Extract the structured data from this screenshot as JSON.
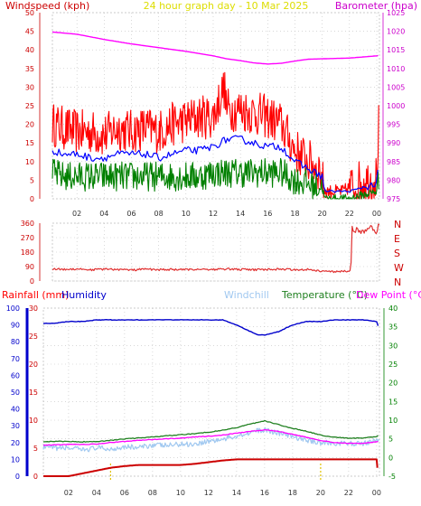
{
  "header": {
    "left_label": "Windspeed (kph)",
    "center_label": "24 hour graph day - 10 Mar 2025",
    "right_label": "Barometer (hpa)"
  },
  "lower_header": {
    "rain_label": "Rainfall (mm)",
    "humidity_label": "Humidity",
    "windchill_label": "Windchill",
    "temperature_label": "Temperature (°C)",
    "dewpoint_label": "Dew Point (°C)"
  },
  "colors": {
    "background": "#ffffff",
    "wind_gust": "#ff0000",
    "wind_avg": "#0000ff",
    "wind_low": "#008000",
    "barometer": "#ff00ff",
    "direction": "#e03030",
    "rain": "#cc0000",
    "humidity": "#0000cc",
    "windchill": "#a0c8f0",
    "temperature": "#208020",
    "dewpoint": "#ff00ff",
    "header_left": "#cc0000",
    "header_center": "#dddd00",
    "header_right": "#cc00cc",
    "axis_left": "#cc0000",
    "axis_right": "#cc00cc",
    "axis_temp": "#008000",
    "grid": "#c0c0c0"
  },
  "chart_data": [
    {
      "id": "wind_baro",
      "type": "line",
      "x_ticks": [
        "02",
        "04",
        "06",
        "08",
        "10",
        "12",
        "14",
        "16",
        "18",
        "20",
        "22",
        "00"
      ],
      "x_tick_hours": [
        2,
        4,
        6,
        8,
        10,
        12,
        14,
        16,
        18,
        20,
        22,
        24
      ],
      "x_range": [
        0.2,
        24.2
      ],
      "ylim": [
        0,
        50
      ],
      "y_ticks": [
        "0",
        "5",
        "10",
        "15",
        "20",
        "25",
        "30",
        "35",
        "40",
        "45",
        "50"
      ],
      "y2lim": [
        975,
        1025
      ],
      "y2_ticks": [
        "975",
        "980",
        "985",
        "990",
        "995",
        "1000",
        "1005",
        "1010",
        "1015",
        "1020",
        "1025"
      ],
      "series": [
        {
          "key": "gust",
          "hours": [
            0.2,
            1,
            2,
            3,
            4,
            5,
            6,
            7,
            8,
            9,
            10,
            11,
            12,
            12.8,
            13,
            14,
            15,
            16,
            17,
            18,
            19,
            19.8,
            20.2,
            21.5,
            22.5,
            23,
            23.5,
            24,
            24.2
          ],
          "values": [
            20,
            19,
            18,
            18,
            17,
            19,
            18,
            19,
            18,
            20,
            21,
            22,
            22,
            30,
            24,
            24,
            23,
            22,
            20,
            13,
            10,
            8,
            2,
            2,
            4,
            5,
            5,
            6,
            24
          ]
        },
        {
          "key": "average",
          "hours": [
            0.2,
            1,
            2,
            3,
            4,
            5,
            6,
            7,
            8,
            9,
            10,
            11,
            12,
            13,
            14,
            15,
            16,
            17,
            18,
            19,
            20,
            20.2,
            22,
            23,
            24,
            24.2
          ],
          "values": [
            13,
            12,
            12,
            11,
            11,
            12,
            12,
            12,
            11,
            12,
            13,
            13,
            14,
            16,
            16,
            15,
            14,
            14,
            10,
            8,
            6,
            2,
            2,
            3,
            4,
            11
          ]
        },
        {
          "key": "low",
          "hours": [
            0.2,
            1,
            2,
            3,
            4,
            5,
            6,
            7,
            8,
            9,
            10,
            11,
            12,
            13,
            14,
            15,
            16,
            17,
            18,
            19,
            20,
            20.2,
            22,
            23,
            24,
            24.2
          ],
          "values": [
            7,
            6,
            6,
            6,
            6,
            6,
            6,
            6,
            6,
            6,
            6,
            6,
            7,
            7,
            7,
            7,
            7,
            7,
            5,
            4,
            3,
            0,
            0,
            1,
            2,
            6
          ]
        },
        {
          "key": "barometer",
          "hours": [
            0.2,
            2,
            4,
            6,
            8,
            10,
            12,
            13,
            14,
            15,
            16,
            17,
            18,
            19,
            20,
            21,
            22,
            23,
            24,
            24.2
          ],
          "values": [
            1019.8,
            1019.2,
            1017.8,
            1016.6,
            1015.6,
            1014.6,
            1013.4,
            1012.6,
            1012.1,
            1011.5,
            1011.2,
            1011.4,
            1012,
            1012.5,
            1012.6,
            1012.7,
            1012.8,
            1013.1,
            1013.4,
            1013.6
          ]
        }
      ]
    },
    {
      "id": "wind_direction",
      "type": "line",
      "x_range": [
        0.2,
        24.2
      ],
      "ylim": [
        0,
        360
      ],
      "y_ticks": [
        "0",
        "90",
        "180",
        "270",
        "360"
      ],
      "compass": [
        "N",
        "W",
        "S",
        "E",
        "N"
      ],
      "series": [
        {
          "key": "direction",
          "hours": [
            0.2,
            1,
            2,
            3,
            4,
            5,
            6,
            7,
            8,
            9,
            10,
            11,
            12,
            13,
            14,
            15,
            16,
            17,
            18,
            19,
            20,
            21,
            21.6,
            22.1,
            22.2,
            23,
            23.5,
            24,
            24.2
          ],
          "values": [
            75,
            72,
            76,
            70,
            74,
            72,
            68,
            74,
            70,
            72,
            70,
            74,
            72,
            75,
            72,
            70,
            72,
            74,
            70,
            73,
            60,
            58,
            60,
            60,
            330,
            300,
            330,
            310,
            350
          ]
        }
      ]
    },
    {
      "id": "rain_humidity_temp",
      "type": "line",
      "x_ticks": [
        "02",
        "04",
        "06",
        "08",
        "10",
        "12",
        "14",
        "16",
        "18",
        "20",
        "22",
        "00"
      ],
      "x_tick_hours": [
        2,
        4,
        6,
        8,
        10,
        12,
        14,
        16,
        18,
        20,
        22,
        24
      ],
      "x_range": [
        0.2,
        24.2
      ],
      "rain_axis": {
        "lim": [
          0,
          30
        ],
        "ticks": [
          "0",
          "5",
          "10",
          "15",
          "20",
          "25",
          "30"
        ]
      },
      "humidity_axis": {
        "lim": [
          0,
          100
        ],
        "ticks": [
          "0",
          "10",
          "20",
          "30",
          "40",
          "50",
          "60",
          "70",
          "80",
          "90",
          "100"
        ]
      },
      "temp_axis": {
        "lim": [
          -5,
          40
        ],
        "ticks": [
          "-5",
          "0",
          "5",
          "10",
          "15",
          "20",
          "25",
          "30",
          "35",
          "40"
        ]
      },
      "series": [
        {
          "key": "rainfall",
          "hours": [
            0.2,
            1,
            2,
            3,
            4,
            5,
            6,
            7,
            8,
            9,
            10,
            11,
            12,
            13,
            14,
            15,
            16,
            17,
            18,
            19,
            20,
            21,
            22,
            23,
            24,
            24.1
          ],
          "values": [
            0,
            0,
            0,
            0.5,
            1,
            1.5,
            1.8,
            2,
            2,
            2,
            2,
            2.2,
            2.5,
            2.8,
            3,
            3,
            3,
            3,
            3,
            3,
            3,
            3,
            3,
            3,
            3,
            0
          ]
        },
        {
          "key": "humidity",
          "hours": [
            0.2,
            1,
            2,
            3,
            4,
            5,
            6,
            7,
            8,
            9,
            10,
            11,
            12,
            13,
            14,
            15,
            15.5,
            16,
            17,
            18,
            19,
            20,
            21,
            22,
            23,
            24,
            24.2
          ],
          "values": [
            91,
            91,
            92,
            92,
            93,
            93,
            93,
            93,
            93,
            93,
            93,
            93,
            93,
            93,
            90,
            86,
            84,
            84,
            86,
            90,
            92,
            92,
            93,
            93,
            93,
            92,
            87
          ]
        },
        {
          "key": "windchill",
          "hours": [
            0.2,
            1,
            2,
            3,
            4,
            5,
            6,
            7,
            8,
            9,
            10,
            11,
            12,
            13,
            14,
            15,
            16,
            17,
            18,
            19,
            20,
            21,
            22,
            23,
            24,
            24.2
          ],
          "values": [
            2.8,
            2.5,
            2.6,
            2.0,
            2.6,
            2.2,
            3.0,
            2.6,
            3.4,
            3.2,
            3.6,
            3.6,
            4.4,
            4.8,
            5.8,
            6.8,
            7.4,
            6.6,
            5.6,
            4.6,
            4.0,
            3.8,
            3.7,
            3.8,
            4.6,
            4.8
          ]
        },
        {
          "key": "temperature",
          "hours": [
            0.2,
            1,
            2,
            3,
            4,
            5,
            6,
            7,
            8,
            9,
            10,
            11,
            12,
            13,
            14,
            15,
            16,
            17,
            18,
            19,
            20,
            21,
            22,
            23,
            24,
            24.2
          ],
          "values": [
            4.3,
            4.3,
            4.3,
            4.2,
            4.3,
            4.6,
            5,
            5.2,
            5.5,
            5.8,
            6.1,
            6.4,
            6.8,
            7.3,
            8,
            9,
            9.8,
            8.8,
            7.8,
            7,
            6,
            5.4,
            5.2,
            5.2,
            5.6,
            6.2
          ]
        },
        {
          "key": "dewpoint",
          "hours": [
            0.2,
            1,
            2,
            3,
            4,
            5,
            6,
            7,
            8,
            9,
            10,
            11,
            12,
            13,
            14,
            15,
            16,
            17,
            18,
            19,
            20,
            21,
            22,
            23,
            24,
            24.2
          ],
          "values": [
            3.3,
            3.4,
            3.5,
            3.5,
            3.6,
            4,
            4.3,
            4.6,
            4.8,
            5,
            5.2,
            5.5,
            5.7,
            6,
            6.5,
            7,
            7.4,
            7,
            6.2,
            5.4,
            4.5,
            4,
            3.8,
            3.8,
            4.2,
            4.4
          ]
        }
      ]
    }
  ]
}
